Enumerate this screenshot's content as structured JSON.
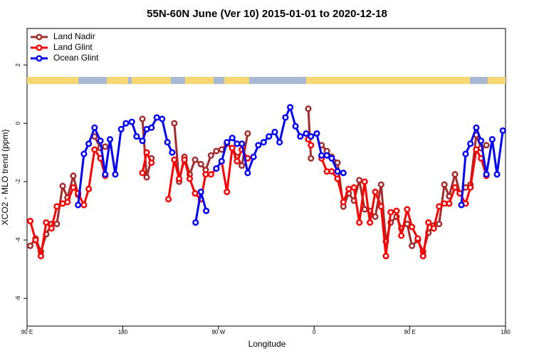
{
  "chart_data": {
    "type": "line",
    "title": "55N-60N June (Ver 10)   2015-01-01 to 2020-12-18",
    "xlabel": "Longitude",
    "ylabel": "XCO2 - MLO trend (ppm)",
    "xlim": [
      90,
      540
    ],
    "ylim": [
      -6.95,
      3.25
    ],
    "xticks": [
      {
        "value": 90,
        "label": "90 E"
      },
      180,
      {
        "value": 270,
        "label": "90 W"
      },
      {
        "value": 360,
        "label": "0"
      },
      {
        "value": 450,
        "label": "90 E"
      },
      {
        "value": 540,
        "label": "180"
      }
    ],
    "yticks": [
      -6,
      -4,
      -2,
      0,
      2
    ],
    "legend": "top-left",
    "series": [
      {
        "name": "Land Nadir",
        "color": "#a52a2a",
        "x": [
          93,
          98,
          103,
          108,
          113,
          118,
          123.5,
          128,
          133.5,
          138,
          null,
          153.5,
          159,
          163.5,
          null,
          198.5,
          202.5,
          207,
          null,
          228.5,
          233,
          238,
          243,
          248,
          253.5,
          258,
          263,
          268,
          273,
          278,
          283,
          287.5,
          292,
          297.5,
          null,
          354.5,
          357,
          null,
          367,
          372,
          376.5,
          382,
          387.5,
          392.5,
          397.5,
          402.5,
          407.5,
          412.5,
          417.5,
          423,
          427.5,
          432,
          437.5,
          442,
          447.5,
          452,
          457.5,
          462.5,
          467.5,
          472.5,
          477.5,
          482.5,
          487,
          492.5,
          497,
          502.5,
          507,
          512.5,
          517,
          522
        ],
        "values": [
          -4.2,
          -3.95,
          -4.4,
          -3.8,
          -3.45,
          -3.45,
          -2.15,
          -2.55,
          -1.8,
          -2.45,
          null,
          -0.45,
          -0.85,
          -0.8,
          null,
          0.15,
          -1.85,
          -1.2,
          null,
          0.0,
          -2.0,
          -1.15,
          -1.75,
          -1.25,
          -1.4,
          -1.6,
          -1.1,
          -0.95,
          -0.9,
          -0.7,
          -0.85,
          -1.15,
          -1.45,
          -0.35,
          null,
          0.5,
          -1.2,
          null,
          -0.75,
          -0.95,
          -1.15,
          -1.35,
          -2.85,
          -2.4,
          -2.65,
          -1.95,
          -2.95,
          -3.0,
          -3.2,
          -2.1,
          -4.05,
          -3.4,
          -3.2,
          -3.6,
          -3.45,
          -4.2,
          -4.0,
          -4.4,
          -3.75,
          -3.5,
          -3.45,
          -2.1,
          -2.5,
          -1.75,
          -2.4,
          -2.2,
          -2.1,
          -0.4,
          -0.85,
          -0.75
        ]
      },
      {
        "name": "Land Glint",
        "color": "#ff0000",
        "x": [
          93,
          98,
          103,
          108,
          113,
          118,
          123.5,
          128,
          133.5,
          138,
          143.5,
          148,
          153.5,
          159,
          163.5,
          null,
          198.5,
          202.5,
          207,
          null,
          223,
          228.5,
          233,
          238,
          243,
          248,
          253.5,
          258,
          263,
          268,
          273,
          278,
          283,
          287.5,
          292,
          297.5,
          null,
          354.5,
          357,
          null,
          367,
          372,
          376.5,
          382,
          387.5,
          392.5,
          397.5,
          402.5,
          407.5,
          412.5,
          417.5,
          423,
          427.5,
          432,
          437.5,
          442,
          447.5,
          452,
          457.5,
          462.5,
          467.5,
          472.5,
          477.5,
          482.5,
          487,
          492.5,
          497,
          502.5,
          507,
          512.5,
          517,
          522
        ],
        "values": [
          -3.35,
          -4.0,
          -4.55,
          -3.4,
          -3.6,
          -2.85,
          -2.75,
          -2.7,
          -2.2,
          -2.4,
          -2.8,
          -2.25,
          -0.9,
          -1.2,
          -1.8,
          null,
          -1.7,
          -1.0,
          -1.35,
          null,
          -2.6,
          -1.25,
          -1.9,
          -1.25,
          -1.9,
          -2.4,
          -2.6,
          -1.75,
          -1.75,
          -1.55,
          -1.3,
          -2.35,
          -0.85,
          -1.3,
          -0.9,
          -1.2,
          null,
          -0.55,
          -0.75,
          null,
          -1.2,
          -1.65,
          -1.65,
          -1.9,
          -2.7,
          -2.25,
          -2.2,
          -3.4,
          -2.0,
          -3.4,
          -2.35,
          -2.85,
          -4.55,
          -3.05,
          -3.0,
          -3.85,
          -2.95,
          -3.55,
          -3.95,
          -4.55,
          -3.4,
          -3.6,
          -2.85,
          -2.75,
          -2.75,
          -2.2,
          -2.4,
          -2.75,
          -2.2,
          -0.9,
          -1.2,
          -1.8
        ]
      },
      {
        "name": "Ocean Glint",
        "color": "#0000ff",
        "x": [
          138,
          143.5,
          148,
          153.5,
          159,
          163.5,
          168,
          173,
          178.5,
          183,
          188.5,
          193,
          198.5,
          202.5,
          207,
          212,
          217,
          222,
          226.5,
          null,
          248.5,
          253.5,
          258.5,
          null,
          268,
          273,
          278,
          283,
          287.5,
          292,
          297.5,
          303,
          307.5,
          312.5,
          317.5,
          323,
          327.5,
          333,
          337.5,
          342.5,
          347,
          352.5,
          357,
          362.5,
          367,
          372,
          376.5,
          382,
          387.5,
          null,
          498.5,
          502.5,
          507,
          512.5,
          517,
          522,
          527.5,
          532,
          537.5
        ],
        "values": [
          -2.8,
          -1.05,
          -0.7,
          -0.15,
          -0.6,
          -1.75,
          -0.55,
          -1.75,
          -0.2,
          0.0,
          0.05,
          -0.45,
          -0.6,
          -0.2,
          -0.15,
          0.2,
          0.15,
          -0.65,
          -1.0,
          null,
          -3.4,
          -2.35,
          -3.0,
          null,
          -1.55,
          -1.3,
          -0.65,
          -0.5,
          -0.7,
          -0.7,
          -1.7,
          -1.15,
          -0.75,
          -0.65,
          -0.45,
          -0.3,
          -0.65,
          0.2,
          0.55,
          -0.1,
          -0.45,
          -0.35,
          -0.45,
          -0.35,
          -1.1,
          -1.1,
          -1.2,
          -1.65,
          -1.7,
          null,
          -2.8,
          -1.05,
          -0.7,
          -0.15,
          -0.6,
          -1.75,
          -0.55,
          -1.75,
          -0.25
        ]
      }
    ]
  }
}
